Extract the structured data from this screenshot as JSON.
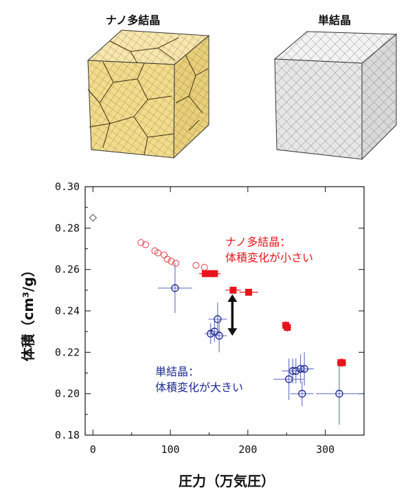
{
  "header": {
    "nano_label": "ナノ多結晶",
    "single_label": "単結晶"
  },
  "chart_data": {
    "type": "scatter",
    "xlabel": "圧力（万気圧）",
    "ylabel": "体積（cm³/g）",
    "xlim": [
      -10,
      350
    ],
    "ylim": [
      0.18,
      0.3
    ],
    "x_ticks": [
      "0",
      "100",
      "200",
      "300"
    ],
    "x_tick_values": [
      0,
      100,
      200,
      300
    ],
    "y_ticks": [
      "0.18",
      "0.20",
      "0.22",
      "0.24",
      "0.26",
      "0.28",
      "0.30"
    ],
    "y_tick_values": [
      0.18,
      0.2,
      0.22,
      0.24,
      0.26,
      0.28,
      0.3
    ],
    "grid": false,
    "ambient_point": {
      "x": 0,
      "y": 0.285
    },
    "series": [
      {
        "label_line1": "ナノ多結晶：",
        "label_line2": "体積変化が小さい",
        "color": "#e8141d",
        "points_open": [
          {
            "x": 62,
            "y": 0.273
          },
          {
            "x": 68,
            "y": 0.272
          },
          {
            "x": 80,
            "y": 0.269
          },
          {
            "x": 84,
            "y": 0.268
          },
          {
            "x": 92,
            "y": 0.267
          },
          {
            "x": 96,
            "y": 0.265
          },
          {
            "x": 101,
            "y": 0.264
          },
          {
            "x": 107,
            "y": 0.263
          },
          {
            "x": 133,
            "y": 0.262
          },
          {
            "x": 144,
            "y": 0.261
          }
        ],
        "points_filled": [
          {
            "x": 145,
            "y": 0.258,
            "xerr": 8,
            "yerr": 0.0015
          },
          {
            "x": 152,
            "y": 0.258,
            "xerr": 8,
            "yerr": 0.0015
          },
          {
            "x": 157,
            "y": 0.258,
            "xerr": 8,
            "yerr": 0.0015
          },
          {
            "x": 181,
            "y": 0.25,
            "xerr": 10,
            "yerr": 0.0015
          },
          {
            "x": 201,
            "y": 0.249,
            "xerr": 12,
            "yerr": 0.0015
          },
          {
            "x": 249,
            "y": 0.233,
            "xerr": 5,
            "yerr": 0.002
          },
          {
            "x": 251,
            "y": 0.232,
            "xerr": 5,
            "yerr": 0.002
          },
          {
            "x": 320,
            "y": 0.215,
            "xerr": 5,
            "yerr": 0.002
          },
          {
            "x": 322,
            "y": 0.215,
            "xerr": 5,
            "yerr": 0.002
          }
        ]
      },
      {
        "label_line1": "単結晶：",
        "label_line2": "体積変化が大きい",
        "color": "#1d2891",
        "points": [
          {
            "x": 106,
            "y": 0.251,
            "xerr": 22,
            "yerr": 0.012
          },
          {
            "x": 152,
            "y": 0.229,
            "xerr": 8,
            "yerr": 0.005
          },
          {
            "x": 157,
            "y": 0.23,
            "xerr": 8,
            "yerr": 0.005
          },
          {
            "x": 161,
            "y": 0.236,
            "xerr": 12,
            "yerr": 0.008
          },
          {
            "x": 163,
            "y": 0.228,
            "xerr": 10,
            "yerr": 0.008
          },
          {
            "x": 253,
            "y": 0.207,
            "xerr": 20,
            "yerr": 0.01
          },
          {
            "x": 258,
            "y": 0.211,
            "xerr": 14,
            "yerr": 0.006
          },
          {
            "x": 262,
            "y": 0.211,
            "xerr": 12,
            "yerr": 0.006
          },
          {
            "x": 268,
            "y": 0.212,
            "xerr": 14,
            "yerr": 0.007
          },
          {
            "x": 273,
            "y": 0.212,
            "xerr": 12,
            "yerr": 0.008
          },
          {
            "x": 270,
            "y": 0.2,
            "xerr": 15,
            "yerr": 0.006
          },
          {
            "x": 318,
            "y": 0.2,
            "xerr": 30,
            "yerr": 0.015
          }
        ]
      }
    ],
    "annotations": [
      {
        "type": "double-arrow",
        "x": 180,
        "y_from": 0.248,
        "y_to": 0.228
      }
    ]
  },
  "colors": {
    "nano_cube": "#f2dc8c",
    "single_cube": "#e6e6e6",
    "red": "#e8141d",
    "blue": "#1d2891"
  }
}
